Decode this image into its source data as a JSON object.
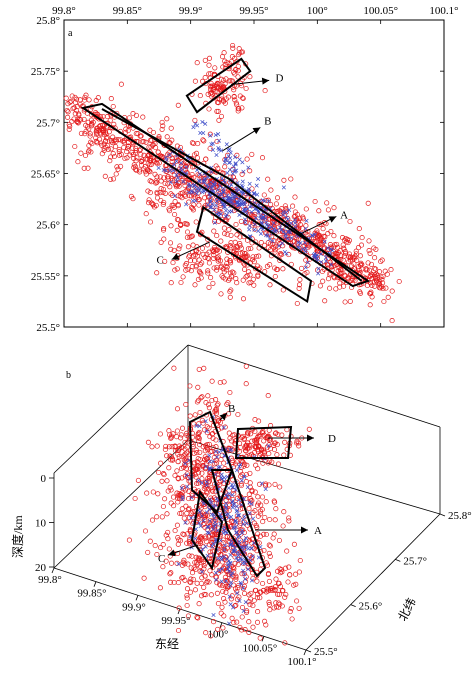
{
  "chart_data": [
    {
      "type": "scatter",
      "panel_label": "a",
      "xlim": [
        99.8,
        100.1
      ],
      "ylim": [
        25.5,
        25.8
      ],
      "x_ticks": [
        "99.8°",
        "99.85°",
        "99.9°",
        "99.95°",
        "100°",
        "100.05°",
        "100.1°"
      ],
      "y_ticks": [
        "25.5°",
        "25.55°",
        "25.6°",
        "25.65°",
        "25.7°",
        "25.75°",
        "25.8°"
      ],
      "series": [
        {
          "marker": "circle",
          "color": "#e41a1c"
        },
        {
          "marker": "x",
          "color": "#3b4bc8"
        }
      ],
      "zones": [
        {
          "name": "A",
          "poly": [
            [
              99.815,
              25.712
            ],
            [
              99.85,
              25.702
            ],
            [
              100.035,
              25.54
            ],
            [
              100.0,
              25.548
            ]
          ],
          "arrow_from": [
            99.985,
            25.592
          ],
          "arrow_to": [
            100.015,
            25.61
          ]
        },
        {
          "name": "B",
          "poly": [
            [
              99.915,
              25.7
            ],
            [
              99.925,
              25.68
            ]
          ],
          "arrow_from": [
            99.93,
            25.685
          ],
          "arrow_to": [
            99.958,
            25.695
          ]
        },
        {
          "name": "C",
          "poly": [
            [
              99.908,
              25.615
            ],
            [
              99.92,
              25.595
            ],
            [
              99.97,
              25.53
            ],
            [
              99.995,
              25.525
            ],
            [
              99.985,
              25.545
            ]
          ],
          "arrow_from": [
            99.915,
            25.587
          ],
          "arrow_to": [
            99.888,
            25.57
          ]
        },
        {
          "name": "D",
          "poly": [
            [
              99.9,
              25.725
            ],
            [
              99.92,
              25.712
            ],
            [
              99.945,
              25.748
            ],
            [
              99.93,
              25.762
            ]
          ],
          "arrow_from": [
            99.935,
            25.737
          ],
          "arrow_to": [
            99.96,
            25.74
          ]
        }
      ]
    },
    {
      "type": "scatter3d",
      "panel_label": "b",
      "x_ticks": [
        "99.8°",
        "99.85°",
        "99.9°",
        "99.95°",
        "100°",
        "100.05°",
        "100.1°"
      ],
      "y_ticks": [
        "25.5°",
        "25.6°",
        "25.7°",
        "25.8°"
      ],
      "z_ticks": [
        "0",
        "10",
        "20"
      ],
      "xlabel": "东经",
      "ylabel": "北纬",
      "zlabel": "深度/km",
      "zone_labels": [
        "A",
        "B",
        "C",
        "D"
      ]
    }
  ]
}
